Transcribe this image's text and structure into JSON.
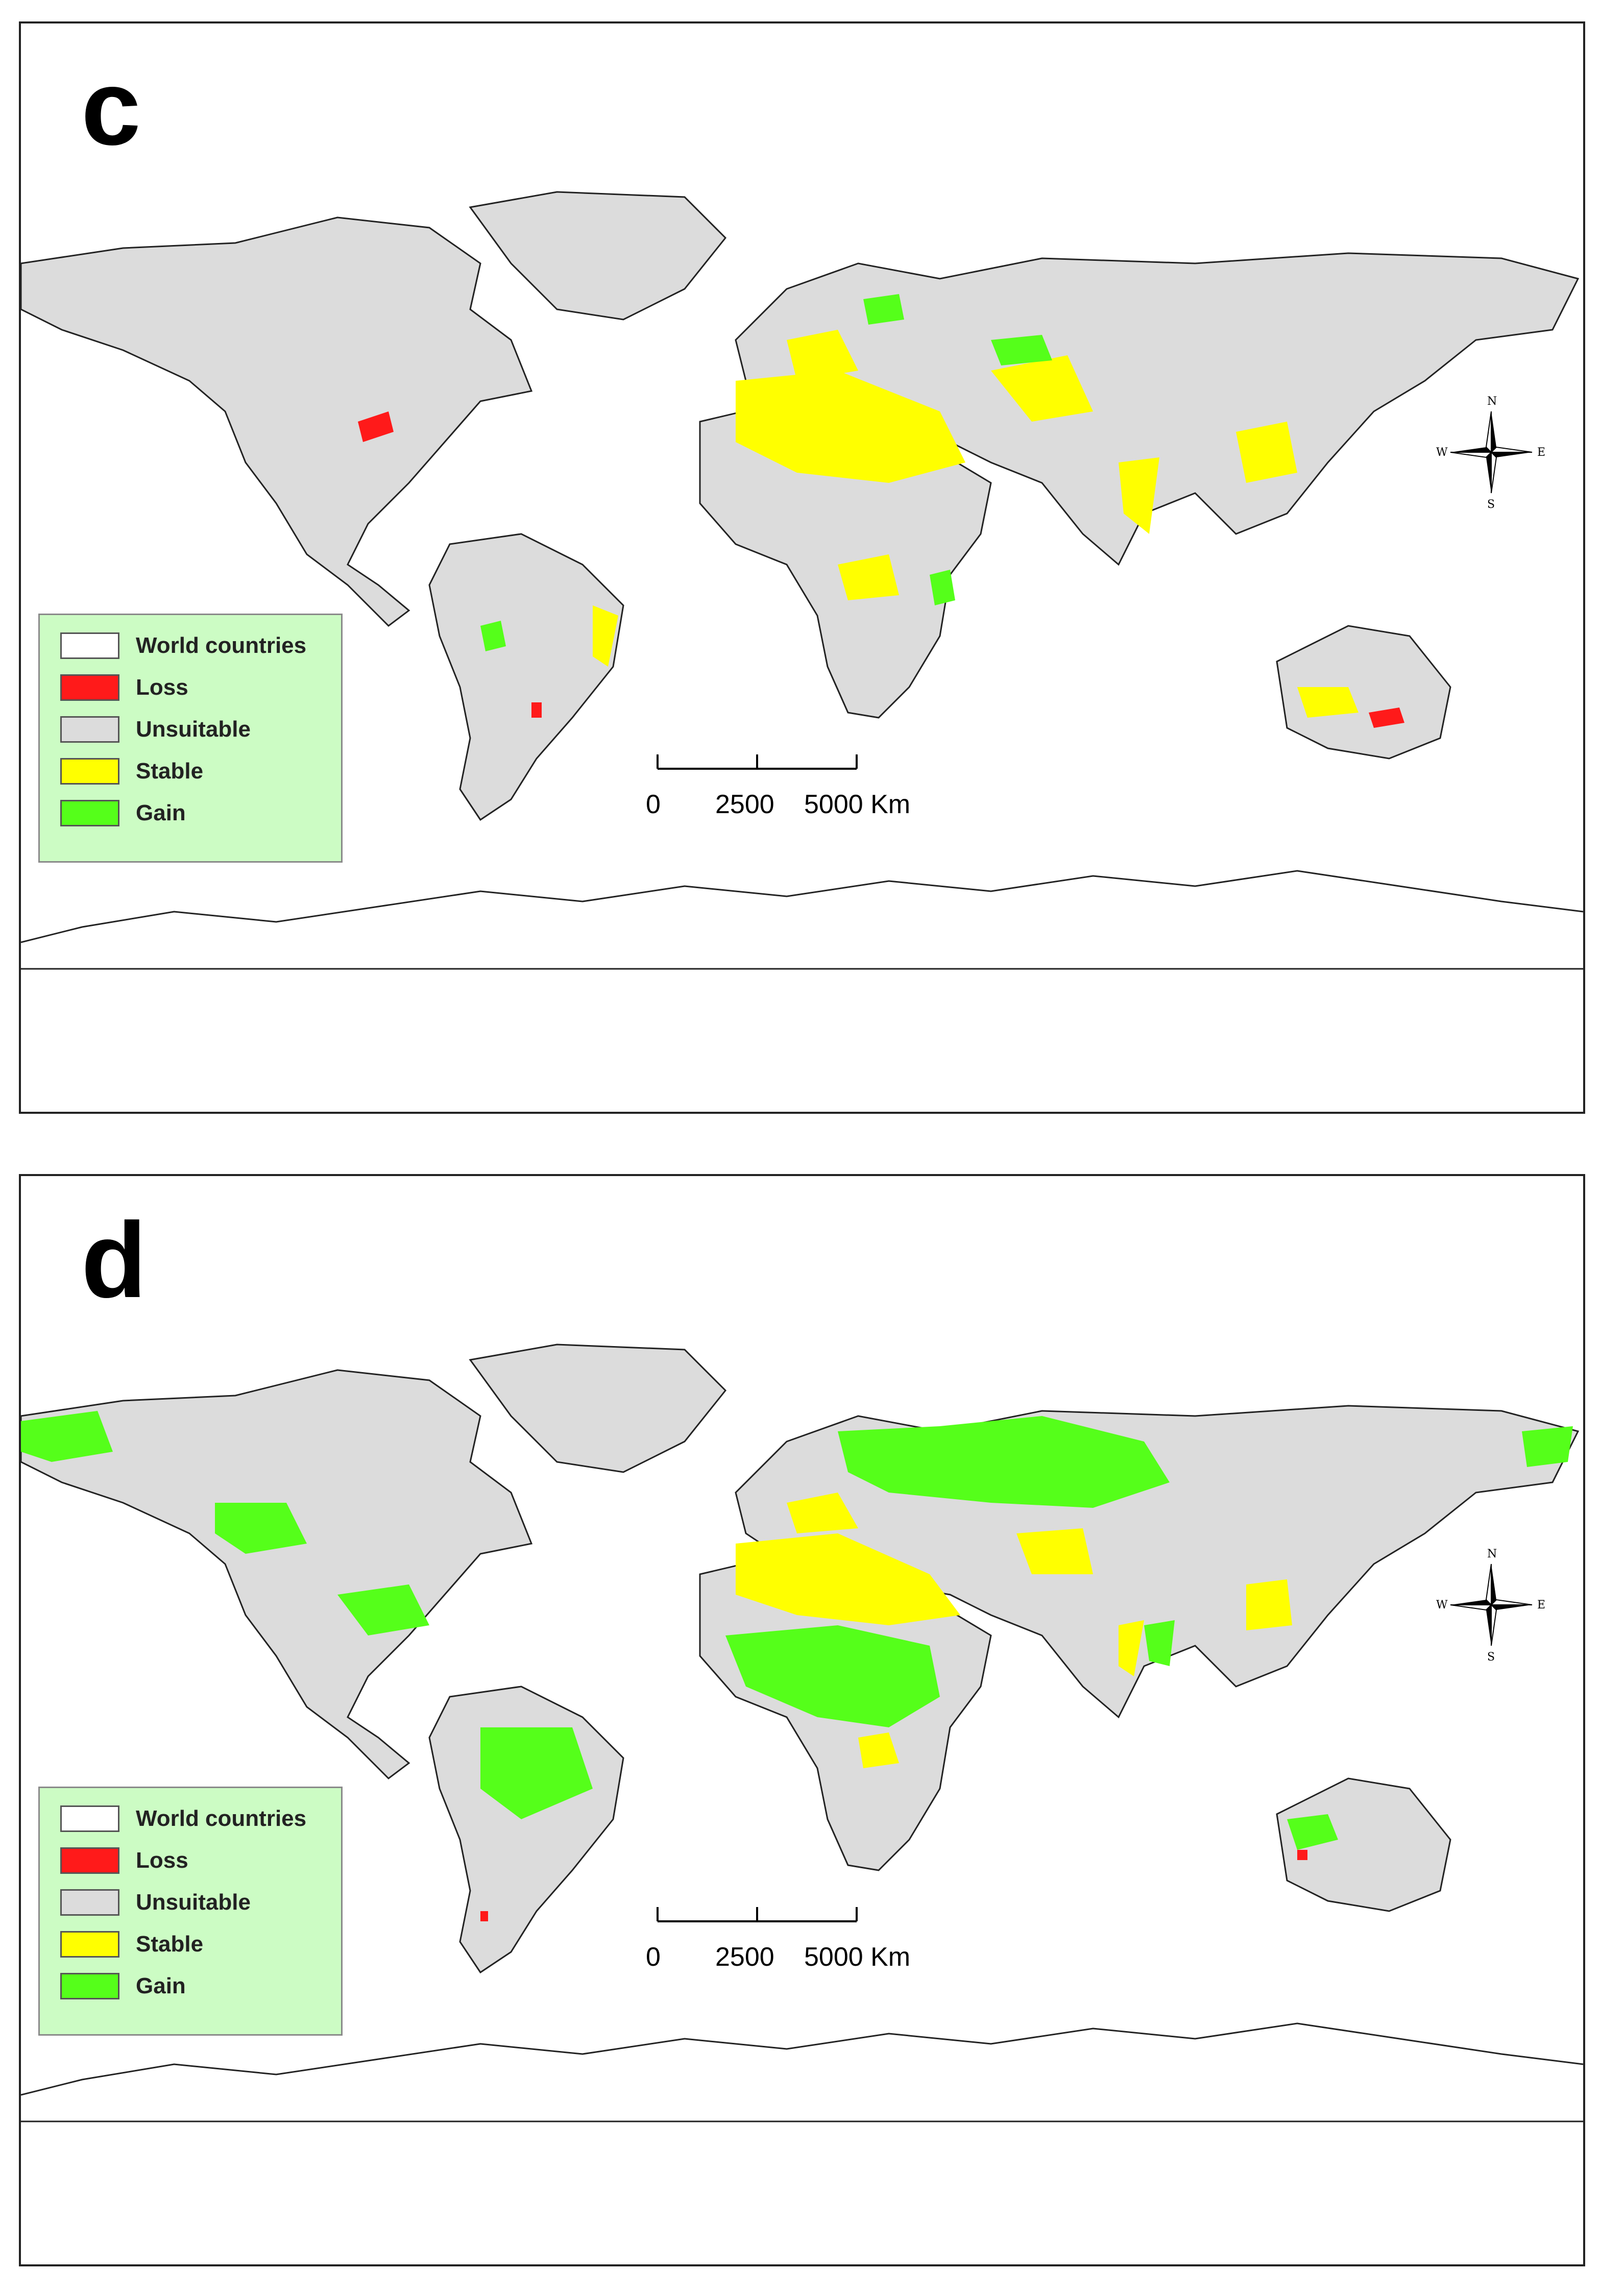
{
  "panels": [
    {
      "id": "c",
      "letter": "c",
      "legend": {
        "items": [
          {
            "label": "World countries",
            "color": "#ffffff"
          },
          {
            "label": "Loss",
            "color": "#ff1a1a"
          },
          {
            "label": "Unsuitable",
            "color": "#dcdcdc"
          },
          {
            "label": "Stable",
            "color": "#ffff00"
          },
          {
            "label": "Gain",
            "color": "#55ff1a"
          }
        ]
      },
      "scale_bar": {
        "ticks": [
          "0",
          "2500",
          "5000 Km"
        ]
      },
      "compass": {
        "n": "N",
        "s": "S",
        "e": "E",
        "w": "W"
      }
    },
    {
      "id": "d",
      "letter": "d",
      "legend": {
        "items": [
          {
            "label": "World countries",
            "color": "#ffffff"
          },
          {
            "label": "Loss",
            "color": "#ff1a1a"
          },
          {
            "label": "Unsuitable",
            "color": "#dcdcdc"
          },
          {
            "label": "Stable",
            "color": "#ffff00"
          },
          {
            "label": "Gain",
            "color": "#55ff1a"
          }
        ]
      },
      "scale_bar": {
        "ticks": [
          "0",
          "2500",
          "5000 Km"
        ]
      },
      "compass": {
        "n": "N",
        "s": "S",
        "e": "E",
        "w": "W"
      }
    }
  ],
  "colors": {
    "land": "#dcdcdc",
    "stable": "#ffff00",
    "gain": "#55ff1a",
    "loss": "#ff1a1a",
    "outline": "#222222",
    "legend_bg": "#ccfcc4"
  }
}
